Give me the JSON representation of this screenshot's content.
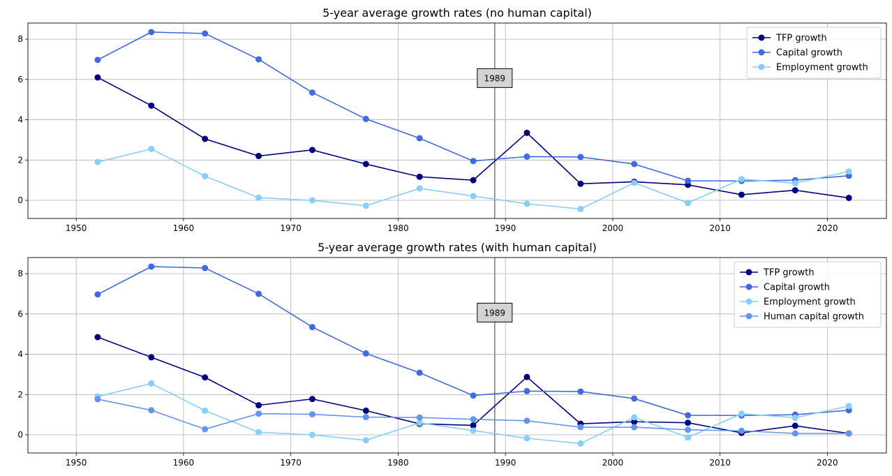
{
  "chart_data": [
    {
      "type": "line",
      "title": "5-year average growth rates (no human capital)",
      "xlabel": "",
      "ylabel": "",
      "xlim": [
        1945.5,
        2025.5
      ],
      "ylim": [
        -0.9,
        8.8
      ],
      "xticks": [
        1950,
        1960,
        1970,
        1980,
        1990,
        2000,
        2010,
        2020
      ],
      "yticks": [
        0,
        2,
        4,
        6,
        8
      ],
      "grid": true,
      "legend_position": "top-right",
      "x": [
        1952,
        1957,
        1962,
        1967,
        1972,
        1977,
        1982,
        1987,
        1992,
        1997,
        2002,
        2007,
        2012,
        2017,
        2022
      ],
      "series": [
        {
          "name": "TFP growth",
          "color": "#00007f",
          "values": [
            6.1,
            4.7,
            3.05,
            2.2,
            2.5,
            1.8,
            1.17,
            1.0,
            3.35,
            0.82,
            0.92,
            0.77,
            0.28,
            0.5,
            0.12
          ]
        },
        {
          "name": "Capital growth",
          "color": "#4169e1",
          "values": [
            6.97,
            8.35,
            8.28,
            7.0,
            5.35,
            4.04,
            3.08,
            1.95,
            2.17,
            2.15,
            1.8,
            0.97,
            0.96,
            1.0,
            1.22
          ]
        },
        {
          "name": "Employment growth",
          "color": "#87cefa",
          "values": [
            1.9,
            2.55,
            1.2,
            0.13,
            0.0,
            -0.27,
            0.59,
            0.21,
            -0.17,
            -0.43,
            0.87,
            -0.13,
            1.05,
            0.85,
            1.43
          ]
        }
      ],
      "annotations": [
        {
          "x": 1989,
          "y": 6.05,
          "text": "1989",
          "vline_color": "#808080"
        }
      ]
    },
    {
      "type": "line",
      "title": "5-year average growth rates (with human capital)",
      "xlabel": "",
      "ylabel": "",
      "xlim": [
        1945.5,
        2025.5
      ],
      "ylim": [
        -0.9,
        8.8
      ],
      "xticks": [
        1950,
        1960,
        1970,
        1980,
        1990,
        2000,
        2010,
        2020
      ],
      "yticks": [
        0,
        2,
        4,
        6,
        8
      ],
      "grid": true,
      "legend_position": "top-right",
      "x": [
        1952,
        1957,
        1962,
        1967,
        1972,
        1977,
        1982,
        1987,
        1992,
        1997,
        2002,
        2007,
        2012,
        2017,
        2022
      ],
      "series": [
        {
          "name": "TFP growth",
          "color": "#00007f",
          "values": [
            4.85,
            3.85,
            2.85,
            1.47,
            1.78,
            1.2,
            0.55,
            0.47,
            2.87,
            0.55,
            0.65,
            0.6,
            0.1,
            0.45,
            0.07
          ]
        },
        {
          "name": "Capital growth",
          "color": "#4169e1",
          "values": [
            6.97,
            8.35,
            8.28,
            7.0,
            5.35,
            4.04,
            3.08,
            1.95,
            2.17,
            2.15,
            1.8,
            0.97,
            0.96,
            1.0,
            1.22
          ]
        },
        {
          "name": "Employment growth",
          "color": "#87cefa",
          "values": [
            1.9,
            2.55,
            1.2,
            0.13,
            0.0,
            -0.27,
            0.59,
            0.21,
            -0.17,
            -0.43,
            0.87,
            -0.13,
            1.05,
            0.85,
            1.43
          ]
        },
        {
          "name": "Human capital growth",
          "color": "#6495ed",
          "values": [
            1.77,
            1.22,
            0.28,
            1.05,
            1.02,
            0.88,
            0.86,
            0.77,
            0.7,
            0.38,
            0.38,
            0.25,
            0.2,
            0.07,
            0.07
          ]
        }
      ],
      "annotations": [
        {
          "x": 1989,
          "y": 6.05,
          "text": "1989",
          "vline_color": "#808080"
        }
      ]
    }
  ]
}
